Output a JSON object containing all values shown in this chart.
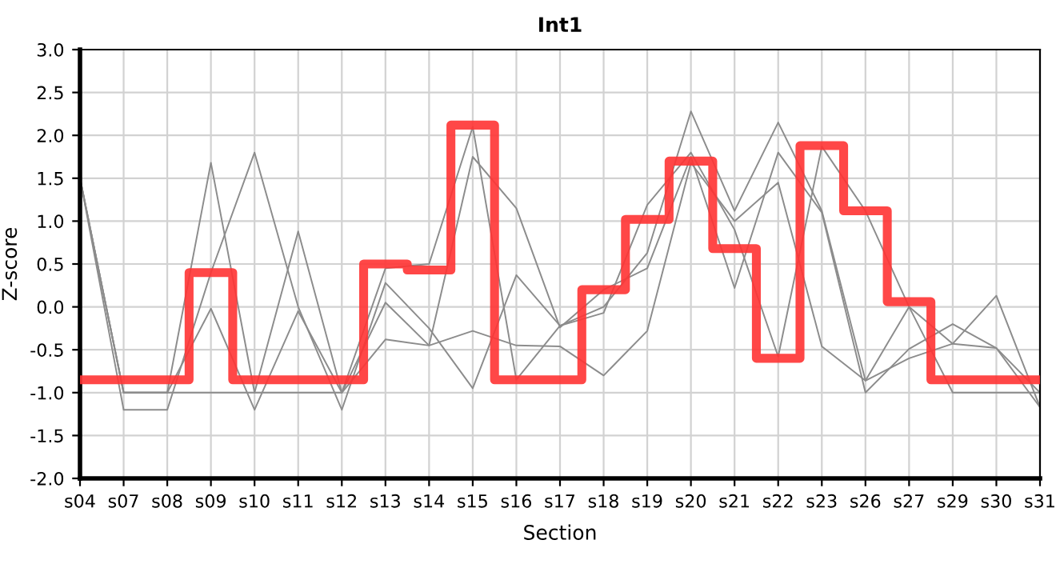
{
  "chart_data": {
    "type": "line",
    "title": "Int1",
    "xlabel": "Section",
    "ylabel": "Z-score",
    "categories": [
      "s04",
      "s07",
      "s08",
      "s09",
      "s10",
      "s11",
      "s12",
      "s13",
      "s14",
      "s15",
      "s16",
      "s17",
      "s18",
      "s19",
      "s20",
      "s21",
      "s22",
      "s23",
      "s26",
      "s27",
      "s29",
      "s30",
      "s31"
    ],
    "series": [
      {
        "color": "#8c8c8c",
        "values": [
          1.5,
          -1.0,
          -1.0,
          1.68,
          -1.0,
          0.88,
          -1.0,
          0.45,
          0.5,
          2.1,
          -0.85,
          -0.22,
          0.0,
          0.63,
          2.28,
          1.12,
          2.15,
          1.12,
          -0.86,
          0.0,
          -1.0,
          -1.0,
          -1.0
        ]
      },
      {
        "color": "#8c8c8c",
        "values": [
          1.5,
          -1.2,
          -1.2,
          0.4,
          1.8,
          0.0,
          -1.2,
          0.28,
          -0.25,
          -0.95,
          0.37,
          -0.22,
          -0.07,
          1.19,
          1.8,
          0.9,
          -0.58,
          1.87,
          1.12,
          0.0,
          -0.43,
          0.13,
          -1.17
        ]
      },
      {
        "color": "#8c8c8c",
        "values": [
          1.5,
          -1.0,
          -1.0,
          -0.02,
          -1.2,
          -0.05,
          -1.0,
          0.05,
          -0.45,
          1.75,
          1.15,
          -0.24,
          0.2,
          0.45,
          1.75,
          0.22,
          1.8,
          1.1,
          -1.0,
          -0.49,
          -0.2,
          -0.48,
          -1.17
        ]
      },
      {
        "color": "#8c8c8c",
        "values": [
          1.5,
          -1.0,
          -1.0,
          -1.0,
          -1.0,
          -1.0,
          -1.0,
          -0.38,
          -0.45,
          -0.28,
          -0.45,
          -0.46,
          -0.8,
          -0.28,
          1.68,
          1.0,
          1.45,
          -0.46,
          -0.86,
          -0.6,
          -0.43,
          -0.48,
          -1.0
        ]
      },
      {
        "type": "step",
        "color": "#ff3333",
        "values": [
          -0.85,
          -0.85,
          -0.85,
          0.4,
          -0.85,
          -0.85,
          -0.85,
          0.5,
          0.43,
          2.12,
          -0.85,
          -0.85,
          0.2,
          1.02,
          1.7,
          0.68,
          -0.6,
          1.88,
          1.12,
          0.06,
          -0.85,
          -0.85,
          -0.85
        ]
      }
    ],
    "ylim": [
      -2.0,
      3.0
    ],
    "yticks": [
      {
        "value": -2.0,
        "label": "-2.0"
      },
      {
        "value": -1.5,
        "label": "-1.5"
      },
      {
        "value": -1.0,
        "label": "-1.0"
      },
      {
        "value": -0.5,
        "label": "-0.5"
      },
      {
        "value": 0.0,
        "label": "0.0"
      },
      {
        "value": 0.5,
        "label": "0.5"
      },
      {
        "value": 1.0,
        "label": "1.0"
      },
      {
        "value": 1.5,
        "label": "1.5"
      },
      {
        "value": 2.0,
        "label": "2.0"
      },
      {
        "value": 2.5,
        "label": "2.5"
      },
      {
        "value": 3.0,
        "label": "3.0"
      }
    ],
    "grid": true,
    "legend": false
  }
}
